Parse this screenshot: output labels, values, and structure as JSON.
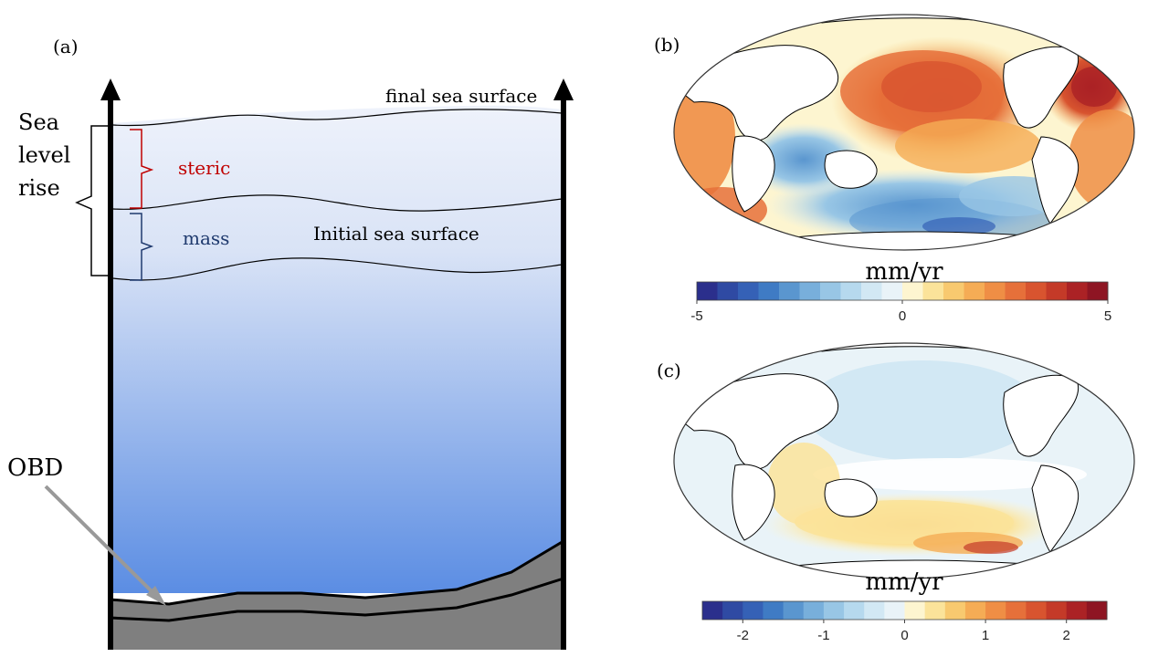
{
  "panel_a": {
    "label": "(a)",
    "sea_level_rise_label": [
      "Sea",
      "level",
      "rise"
    ],
    "final_surface_label": "final sea surface",
    "initial_surface_label": "Initial sea surface",
    "steric_label": "steric",
    "mass_label": "mass",
    "obd_label": "OBD",
    "colors": {
      "water_top": "#eef2fb",
      "water_bottom": "#5b8de3",
      "steric": "#c00000",
      "mass": "#1f3a6e",
      "seafloor": "#7f7f7f",
      "arrow": "#999999"
    }
  },
  "panel_b": {
    "label": "(b)",
    "colorbar": {
      "unit_label": "mm/yr",
      "range": [
        -5,
        5
      ],
      "tick_labels": [
        "-5",
        "0",
        "5"
      ],
      "colors": [
        "#2b2f8c",
        "#2f4aa3",
        "#3561b6",
        "#3f7bc4",
        "#5a96cf",
        "#78afdb",
        "#98c6e5",
        "#b6d9ee",
        "#d2e8f4",
        "#e9f3f8",
        "#fdf5d0",
        "#fbe39a",
        "#f8c96f",
        "#f5ac55",
        "#ef8e45",
        "#e6703a",
        "#d8542f",
        "#c43a28",
        "#ab2225",
        "#8e1523"
      ]
    }
  },
  "panel_c": {
    "label": "(c)",
    "colorbar": {
      "unit_label": "mm/yr",
      "range": [
        -2.5,
        2.5
      ],
      "tick_labels": [
        "-2",
        "-1",
        "0",
        "1",
        "2"
      ],
      "colors": [
        "#2b2f8c",
        "#2f4aa3",
        "#3561b6",
        "#3f7bc4",
        "#5a96cf",
        "#78afdb",
        "#98c6e5",
        "#b6d9ee",
        "#d2e8f4",
        "#e9f3f8",
        "#fdf5d0",
        "#fbe39a",
        "#f8c96f",
        "#f5ac55",
        "#ef8e45",
        "#e6703a",
        "#d8542f",
        "#c43a28",
        "#ab2225",
        "#8e1523"
      ]
    }
  }
}
